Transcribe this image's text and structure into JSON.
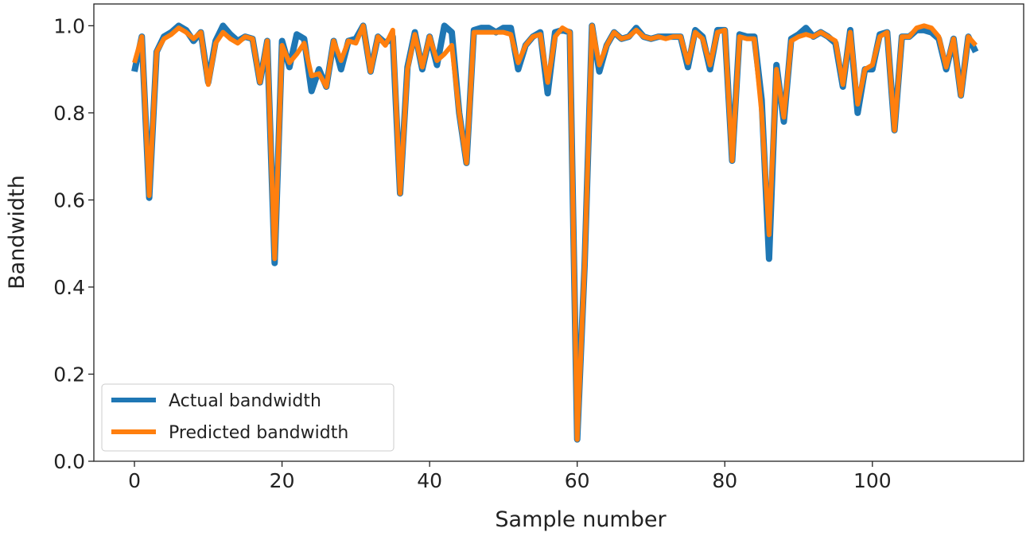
{
  "chart_data": {
    "type": "line",
    "title": "",
    "xlabel": "Sample number",
    "ylabel": "Bandwidth",
    "xlim": [
      -5.5,
      120.5
    ],
    "ylim": [
      0.0,
      1.05
    ],
    "xticks": [
      0,
      20,
      40,
      60,
      80,
      100
    ],
    "xtick_labels": [
      "0",
      "20",
      "40",
      "60",
      "80",
      "100"
    ],
    "yticks": [
      0.0,
      0.2,
      0.4,
      0.6,
      0.8,
      1.0
    ],
    "ytick_labels": [
      "0.0",
      "0.2",
      "0.4",
      "0.6",
      "0.8",
      "1.0"
    ],
    "grid": false,
    "legend_position": "lower-left",
    "series": [
      {
        "name": "Actual bandwidth",
        "color": "#1f77b4",
        "values": [
          0.895,
          0.975,
          0.605,
          0.94,
          0.975,
          0.985,
          1.0,
          0.99,
          0.965,
          0.985,
          0.87,
          0.965,
          1.0,
          0.98,
          0.965,
          0.975,
          0.97,
          0.87,
          0.965,
          0.455,
          0.965,
          0.905,
          0.98,
          0.97,
          0.85,
          0.9,
          0.86,
          0.965,
          0.9,
          0.965,
          0.97,
          1.0,
          0.895,
          0.975,
          0.96,
          0.975,
          0.615,
          0.905,
          0.985,
          0.9,
          0.975,
          0.91,
          1.0,
          0.985,
          0.8,
          0.685,
          0.99,
          0.995,
          0.995,
          0.985,
          0.995,
          0.995,
          0.9,
          0.955,
          0.975,
          0.985,
          0.845,
          0.985,
          0.99,
          0.985,
          0.05,
          0.45,
          1.0,
          0.895,
          0.955,
          0.985,
          0.97,
          0.975,
          0.995,
          0.975,
          0.97,
          0.975,
          0.975,
          0.975,
          0.975,
          0.905,
          0.99,
          0.975,
          0.9,
          0.99,
          0.99,
          0.69,
          0.98,
          0.975,
          0.975,
          0.83,
          0.465,
          0.91,
          0.78,
          0.97,
          0.98,
          0.995,
          0.975,
          0.985,
          0.975,
          0.96,
          0.86,
          0.99,
          0.8,
          0.9,
          0.9,
          0.98,
          0.985,
          0.76,
          0.975,
          0.975,
          0.99,
          0.99,
          0.985,
          0.97,
          0.9,
          0.97,
          0.84,
          0.975,
          0.94
        ]
      },
      {
        "name": "Predicted bandwidth",
        "color": "#ff7f0e",
        "values": [
          0.915,
          0.975,
          0.61,
          0.94,
          0.97,
          0.98,
          0.995,
          0.985,
          0.97,
          0.985,
          0.865,
          0.96,
          0.985,
          0.97,
          0.96,
          0.975,
          0.97,
          0.87,
          0.965,
          0.465,
          0.955,
          0.915,
          0.935,
          0.96,
          0.885,
          0.89,
          0.86,
          0.965,
          0.92,
          0.965,
          0.96,
          1.0,
          0.895,
          0.975,
          0.955,
          0.99,
          0.615,
          0.9,
          0.98,
          0.905,
          0.975,
          0.92,
          0.935,
          0.955,
          0.8,
          0.685,
          0.985,
          0.985,
          0.985,
          0.985,
          0.985,
          0.98,
          0.915,
          0.955,
          0.975,
          0.98,
          0.87,
          0.975,
          0.995,
          0.985,
          0.05,
          0.45,
          1.0,
          0.91,
          0.955,
          0.985,
          0.97,
          0.975,
          0.99,
          0.975,
          0.97,
          0.975,
          0.97,
          0.975,
          0.975,
          0.915,
          0.985,
          0.97,
          0.91,
          0.985,
          0.99,
          0.69,
          0.975,
          0.97,
          0.97,
          0.8,
          0.52,
          0.9,
          0.79,
          0.965,
          0.975,
          0.98,
          0.975,
          0.985,
          0.975,
          0.965,
          0.865,
          0.985,
          0.82,
          0.9,
          0.91,
          0.975,
          0.985,
          0.76,
          0.975,
          0.975,
          0.995,
          1.0,
          0.995,
          0.975,
          0.905,
          0.97,
          0.84,
          0.975,
          0.955
        ]
      }
    ]
  }
}
